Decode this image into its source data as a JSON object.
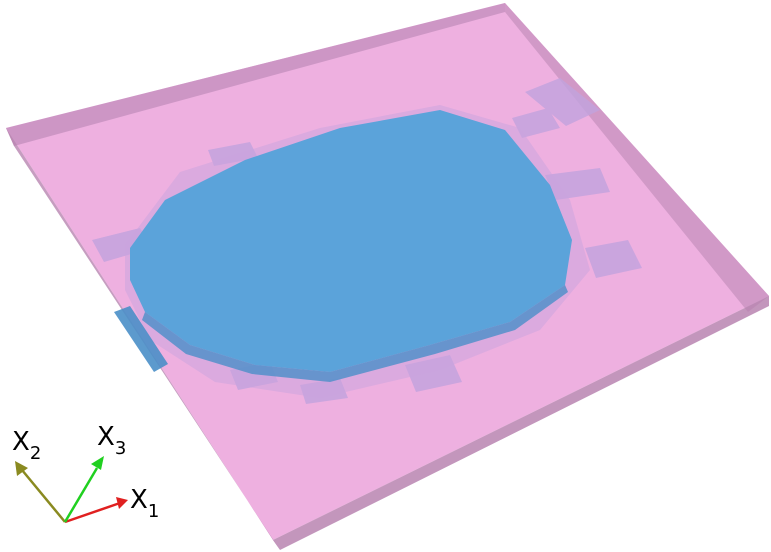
{
  "colors": {
    "plate_top": "#eeb0e0",
    "plate_edge": "#c792bf",
    "plate_side": "#b884b0",
    "blob": "#5ba3da",
    "blob_dark": "#4a8fc8",
    "blocks": "#c2a3de",
    "axis_x1": "#e02020",
    "axis_x2": "#8a8a20",
    "axis_x3": "#20d020"
  },
  "axes": {
    "x1": {
      "main": "X",
      "sub": "1"
    },
    "x2": {
      "main": "X",
      "sub": "2"
    },
    "x3": {
      "main": "X",
      "sub": "3"
    }
  }
}
